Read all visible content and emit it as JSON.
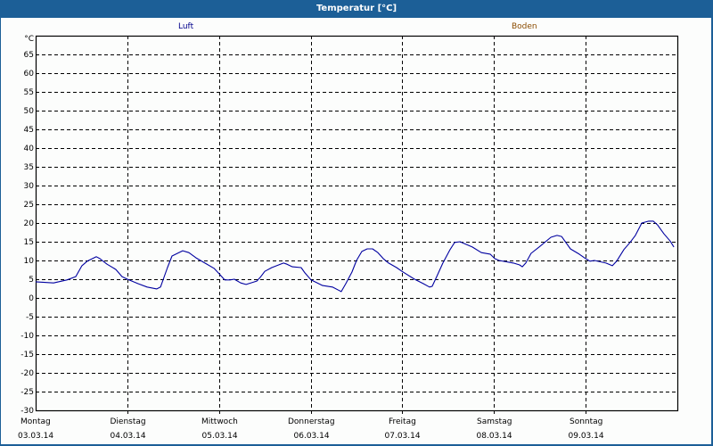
{
  "window": {
    "title": "Temperatur [°C]"
  },
  "legend": {
    "items": [
      {
        "label": "Luft",
        "color": "#00008b"
      },
      {
        "label": "Boden",
        "color": "#8b4c00"
      }
    ]
  },
  "colors": {
    "frame": "#1c5f97",
    "background": "#fcfdfc",
    "line": "#0000a0",
    "grid": "#000000"
  },
  "chart_data": {
    "type": "line",
    "title": "Temperatur [°C]",
    "xlabel": "",
    "ylabel": "°C",
    "ylim": [
      -30,
      70
    ],
    "xlim_hours": [
      0,
      168
    ],
    "grid": true,
    "grid_style": "dashed",
    "legend_position": "top",
    "y_ticks": [
      65,
      60,
      55,
      50,
      45,
      40,
      35,
      30,
      25,
      20,
      15,
      10,
      5,
      0,
      -5,
      -10,
      -15,
      -20,
      -25,
      -30
    ],
    "y_unit_label": "°C",
    "x_ticks": [
      {
        "day": "Montag",
        "date": "03.03.14",
        "hour": 0
      },
      {
        "day": "Dienstag",
        "date": "04.03.14",
        "hour": 24
      },
      {
        "day": "Mittwoch",
        "date": "05.03.14",
        "hour": 48
      },
      {
        "day": "Donnerstag",
        "date": "06.03.14",
        "hour": 72
      },
      {
        "day": "Freitag",
        "date": "07.03.14",
        "hour": 96
      },
      {
        "day": "Samstag",
        "date": "08.03.14",
        "hour": 120
      },
      {
        "day": "Sonntag",
        "date": "09.03.14",
        "hour": 144
      }
    ],
    "series": [
      {
        "name": "Luft",
        "color": "#0000a0",
        "points": [
          [
            0,
            4.3
          ],
          [
            4.7,
            4.0
          ],
          [
            8.2,
            4.8
          ],
          [
            10.5,
            5.7
          ],
          [
            12.1,
            8.6
          ],
          [
            13.5,
            9.8
          ],
          [
            15.9,
            11.0
          ],
          [
            16.8,
            10.5
          ],
          [
            18.7,
            9.0
          ],
          [
            21.0,
            7.6
          ],
          [
            22.6,
            5.7
          ],
          [
            24.0,
            5.0
          ],
          [
            26.8,
            3.8
          ],
          [
            29.2,
            2.9
          ],
          [
            31.7,
            2.4
          ],
          [
            32.7,
            2.9
          ],
          [
            34.5,
            8.1
          ],
          [
            35.7,
            11.2
          ],
          [
            38.5,
            12.6
          ],
          [
            40.1,
            12.1
          ],
          [
            42.0,
            10.7
          ],
          [
            44.3,
            9.3
          ],
          [
            46.7,
            7.9
          ],
          [
            48.1,
            6.4
          ],
          [
            49.5,
            4.8
          ],
          [
            50.9,
            4.8
          ],
          [
            52.0,
            5.0
          ],
          [
            53.7,
            4.0
          ],
          [
            55.1,
            3.6
          ],
          [
            57.9,
            4.5
          ],
          [
            58.8,
            5.5
          ],
          [
            60.0,
            7.1
          ],
          [
            61.8,
            8.1
          ],
          [
            64.9,
            9.3
          ],
          [
            65.8,
            9.0
          ],
          [
            67.2,
            8.3
          ],
          [
            69.5,
            8.1
          ],
          [
            70.5,
            6.7
          ],
          [
            72.1,
            4.8
          ],
          [
            75.1,
            3.3
          ],
          [
            77.7,
            2.9
          ],
          [
            80.0,
            1.7
          ],
          [
            81.2,
            3.8
          ],
          [
            82.8,
            6.9
          ],
          [
            84.0,
            10.0
          ],
          [
            85.4,
            12.4
          ],
          [
            86.8,
            13.1
          ],
          [
            88.2,
            13.1
          ],
          [
            89.6,
            12.1
          ],
          [
            91.0,
            10.5
          ],
          [
            92.4,
            9.3
          ],
          [
            94.5,
            8.1
          ],
          [
            95.9,
            7.1
          ],
          [
            99.2,
            5.0
          ],
          [
            101.5,
            3.8
          ],
          [
            103.1,
            2.9
          ],
          [
            103.8,
            3.1
          ],
          [
            105.0,
            5.7
          ],
          [
            106.6,
            9.3
          ],
          [
            108.5,
            12.9
          ],
          [
            109.7,
            14.8
          ],
          [
            111.1,
            15.0
          ],
          [
            114.3,
            13.6
          ],
          [
            116.7,
            12.1
          ],
          [
            119.0,
            11.7
          ],
          [
            120.2,
            10.5
          ],
          [
            121.3,
            10.0
          ],
          [
            125.1,
            9.3
          ],
          [
            126.7,
            8.8
          ],
          [
            127.4,
            8.3
          ],
          [
            128.3,
            9.3
          ],
          [
            129.7,
            11.9
          ],
          [
            131.8,
            13.6
          ],
          [
            134.9,
            16.2
          ],
          [
            136.5,
            16.7
          ],
          [
            137.7,
            16.4
          ],
          [
            140.0,
            13.1
          ],
          [
            142.3,
            11.7
          ],
          [
            144.0,
            10.5
          ],
          [
            145.1,
            9.8
          ],
          [
            146.3,
            10.0
          ],
          [
            149.3,
            9.3
          ],
          [
            151.0,
            8.6
          ],
          [
            152.1,
            9.8
          ],
          [
            154.0,
            12.9
          ],
          [
            155.6,
            14.8
          ],
          [
            157.0,
            16.7
          ],
          [
            158.7,
            20.0
          ],
          [
            160.5,
            20.5
          ],
          [
            161.7,
            20.5
          ],
          [
            162.8,
            19.5
          ],
          [
            164.5,
            17.1
          ],
          [
            166.1,
            15.2
          ],
          [
            167.1,
            13.6
          ]
        ]
      },
      {
        "name": "Boden",
        "color": "#8b4c00",
        "points": []
      }
    ]
  }
}
